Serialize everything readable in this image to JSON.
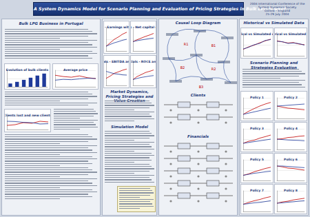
{
  "header": {
    "title": "A System Dynamics Model for Scenario Planning and Evaluation of Pricing Strategies in Bulk LPG Market",
    "conference": [
      "2004 International Conference of the",
      "System Dynamics Society",
      "Oxford – England",
      "25-29 July 2004"
    ]
  },
  "sections": {
    "bulk": "Bulk LPG Business in Portugal",
    "market": "Market Dynamics, Pricing Strategies and Value Creation",
    "simulation": "Simulation Model",
    "causal": "Causal Loop Diagram",
    "clients": "Clients",
    "financials": "Financials",
    "historical": "Historical vs Simulated Data",
    "scenario": "Scenario Planning and Strategies Evaluation"
  },
  "loops": [
    "R1",
    "B1",
    "B2",
    "R2",
    "B3"
  ],
  "chart_data": [
    {
      "type": "bar",
      "title": "Evolution of bulk clients",
      "categories": [
        null,
        null,
        null,
        null,
        null,
        null
      ],
      "series": [
        {
          "color": "#1f3a9a",
          "values": [
            20,
            30,
            42,
            55,
            68,
            80
          ]
        }
      ],
      "ylim": [
        0,
        100
      ],
      "yticks": [
        0,
        50,
        100
      ],
      "tick_labels": false,
      "grid": true
    },
    {
      "type": "line",
      "title": "Average price",
      "categories": [
        null,
        null,
        null,
        null,
        null,
        null
      ],
      "series": [
        {
          "color": "#c00000",
          "values": [
            70,
            62,
            58,
            66,
            55,
            50
          ]
        },
        {
          "color": "#1f3a9a",
          "values": [
            40,
            45,
            43,
            48,
            52,
            50
          ]
        }
      ],
      "ylim": [
        0,
        100
      ],
      "yticks": [
        0,
        50,
        100
      ],
      "tick_labels": false,
      "grid": true
    },
    {
      "type": "line",
      "title": "Clients lost and new clients",
      "categories": [
        null,
        null,
        null,
        null,
        null,
        null
      ],
      "series": [
        {
          "color": "#c00000",
          "values": [
            30,
            35,
            50,
            45,
            60,
            55
          ]
        },
        {
          "color": "#1f3a9a",
          "values": [
            60,
            58,
            52,
            50,
            40,
            42
          ]
        }
      ],
      "ylim": [
        0,
        100
      ],
      "yticks": [
        0,
        50,
        100
      ],
      "tick_labels": false,
      "grid": true
    },
    {
      "type": "line",
      "title": "Financials - Earnings with strategy",
      "categories": [
        null,
        null,
        null,
        null,
        null,
        null
      ],
      "series": [
        {
          "color": "#c00000",
          "values": [
            20,
            35,
            50,
            60,
            72,
            80
          ]
        },
        {
          "color": "#1f3a9a",
          "values": [
            20,
            28,
            35,
            40,
            46,
            50
          ]
        }
      ],
      "ylim": [
        0,
        100
      ],
      "yticks": [
        0,
        50,
        100
      ],
      "tick_labels": false,
      "grid": true
    },
    {
      "type": "line",
      "title": "Financials - Net capital employed",
      "categories": [
        null,
        null,
        null,
        null,
        null,
        null
      ],
      "series": [
        {
          "color": "#c00000",
          "values": [
            40,
            48,
            55,
            62,
            68,
            75
          ]
        },
        {
          "color": "#1f3a9a",
          "values": [
            40,
            44,
            47,
            50,
            53,
            55
          ]
        }
      ],
      "ylim": [
        0,
        100
      ],
      "yticks": [
        0,
        50,
        100
      ],
      "tick_labels": false,
      "grid": true
    },
    {
      "type": "line",
      "title": "Financials - EBITDA and ROCE",
      "categories": [
        null,
        null,
        null,
        null,
        null,
        null
      ],
      "series": [
        {
          "color": "#c00000",
          "values": [
            30,
            40,
            52,
            58,
            65,
            70
          ]
        },
        {
          "color": "#1f3a9a",
          "values": [
            60,
            55,
            50,
            48,
            45,
            44
          ]
        }
      ],
      "ylim": [
        0,
        100
      ],
      "yticks": [
        0,
        50,
        100
      ],
      "tick_labels": false,
      "grid": true
    },
    {
      "type": "line",
      "title": "Financials - ROCE and NPV",
      "categories": [
        null,
        null,
        null,
        null,
        null,
        null
      ],
      "series": [
        {
          "color": "#c00000",
          "values": [
            25,
            38,
            46,
            55,
            60,
            66
          ]
        },
        {
          "color": "#1f3a9a",
          "values": [
            25,
            30,
            34,
            37,
            40,
            42
          ]
        }
      ],
      "ylim": [
        0,
        100
      ],
      "yticks": [
        0,
        50,
        100
      ],
      "tick_labels": false,
      "grid": true
    },
    {
      "type": "line",
      "title": "Historical vs Simulated clients",
      "categories": [
        null,
        null,
        null,
        null,
        null,
        null
      ],
      "series": [
        {
          "color": "#c00000",
          "values": [
            30,
            42,
            50,
            61,
            70,
            78
          ]
        },
        {
          "color": "#1f3a9a",
          "values": [
            32,
            40,
            52,
            58,
            72,
            76
          ]
        }
      ],
      "ylim": [
        0,
        100
      ],
      "yticks": [
        0,
        50,
        100
      ],
      "tick_labels": false,
      "grid": true
    },
    {
      "type": "line",
      "title": "Historical vs Simulated price",
      "categories": [
        null,
        null,
        null,
        null,
        null,
        null
      ],
      "series": [
        {
          "color": "#c00000",
          "values": [
            70,
            65,
            60,
            62,
            55,
            52
          ]
        },
        {
          "color": "#1f3a9a",
          "values": [
            68,
            66,
            58,
            60,
            57,
            50
          ]
        }
      ],
      "ylim": [
        0,
        100
      ],
      "yticks": [
        0,
        50,
        100
      ],
      "tick_labels": false,
      "grid": true
    },
    {
      "type": "line",
      "title": "Policy 1",
      "categories": [
        null,
        null,
        null,
        null,
        null,
        null
      ],
      "series": [
        {
          "color": "#c00000",
          "values": [
            20,
            35,
            48,
            60,
            70,
            78
          ]
        },
        {
          "color": "#1f3a9a",
          "values": [
            20,
            26,
            32,
            38,
            44,
            50
          ]
        }
      ],
      "ylim": [
        0,
        100
      ],
      "yticks": [
        0,
        50,
        100
      ],
      "tick_labels": false,
      "grid": true
    },
    {
      "type": "line",
      "title": "Policy 2",
      "categories": [
        null,
        null,
        null,
        null,
        null,
        null
      ],
      "series": [
        {
          "color": "#c00000",
          "values": [
            60,
            55,
            50,
            48,
            45,
            42
          ]
        },
        {
          "color": "#1f3a9a",
          "values": [
            60,
            62,
            64,
            66,
            68,
            70
          ]
        }
      ],
      "ylim": [
        0,
        100
      ],
      "yticks": [
        0,
        50,
        100
      ],
      "tick_labels": false,
      "grid": true
    },
    {
      "type": "line",
      "title": "Policy 3",
      "categories": [
        null,
        null,
        null,
        null,
        null,
        null
      ],
      "series": [
        {
          "color": "#c00000",
          "values": [
            30,
            40,
            45,
            55,
            62,
            70
          ]
        },
        {
          "color": "#1f3a9a",
          "values": [
            30,
            34,
            38,
            42,
            46,
            50
          ]
        }
      ],
      "ylim": [
        0,
        100
      ],
      "yticks": [
        0,
        50,
        100
      ],
      "tick_labels": false,
      "grid": true
    },
    {
      "type": "line",
      "title": "Policy 4",
      "categories": [
        null,
        null,
        null,
        null,
        null,
        null
      ],
      "series": [
        {
          "color": "#c00000",
          "values": [
            50,
            52,
            58,
            60,
            64,
            66
          ]
        },
        {
          "color": "#1f3a9a",
          "values": [
            50,
            48,
            46,
            45,
            44,
            42
          ]
        }
      ],
      "ylim": [
        0,
        100
      ],
      "yticks": [
        0,
        50,
        100
      ],
      "tick_labels": false,
      "grid": true
    },
    {
      "type": "line",
      "title": "Policy 5",
      "categories": [
        null,
        null,
        null,
        null,
        null,
        null
      ],
      "series": [
        {
          "color": "#c00000",
          "values": [
            25,
            32,
            42,
            50,
            58,
            64
          ]
        },
        {
          "color": "#1f3a9a",
          "values": [
            25,
            30,
            35,
            38,
            42,
            45
          ]
        }
      ],
      "ylim": [
        0,
        100
      ],
      "yticks": [
        0,
        50,
        100
      ],
      "tick_labels": false,
      "grid": true
    },
    {
      "type": "line",
      "title": "Policy 6",
      "categories": [
        null,
        null,
        null,
        null,
        null,
        null
      ],
      "series": [
        {
          "color": "#c00000",
          "values": [
            70,
            66,
            60,
            58,
            54,
            50
          ]
        },
        {
          "color": "#1f3a9a",
          "values": [
            70,
            70,
            68,
            66,
            64,
            62
          ]
        }
      ],
      "ylim": [
        0,
        100
      ],
      "yticks": [
        0,
        50,
        100
      ],
      "tick_labels": false,
      "grid": true
    },
    {
      "type": "line",
      "title": "Policy 7",
      "categories": [
        null,
        null,
        null,
        null,
        null,
        null
      ],
      "series": [
        {
          "color": "#c00000",
          "values": [
            35,
            44,
            52,
            58,
            66,
            72
          ]
        },
        {
          "color": "#1f3a9a",
          "values": [
            35,
            38,
            42,
            44,
            48,
            52
          ]
        }
      ],
      "ylim": [
        0,
        100
      ],
      "yticks": [
        0,
        50,
        100
      ],
      "tick_labels": false,
      "grid": true
    },
    {
      "type": "line",
      "title": "Policy 8",
      "categories": [
        null,
        null,
        null,
        null,
        null,
        null
      ],
      "series": [
        {
          "color": "#c00000",
          "values": [
            40,
            46,
            50,
            56,
            60,
            64
          ]
        },
        {
          "color": "#1f3a9a",
          "values": [
            40,
            42,
            45,
            47,
            50,
            52
          ]
        }
      ],
      "ylim": [
        0,
        100
      ],
      "yticks": [
        0,
        50,
        100
      ],
      "tick_labels": false,
      "grid": true
    }
  ]
}
